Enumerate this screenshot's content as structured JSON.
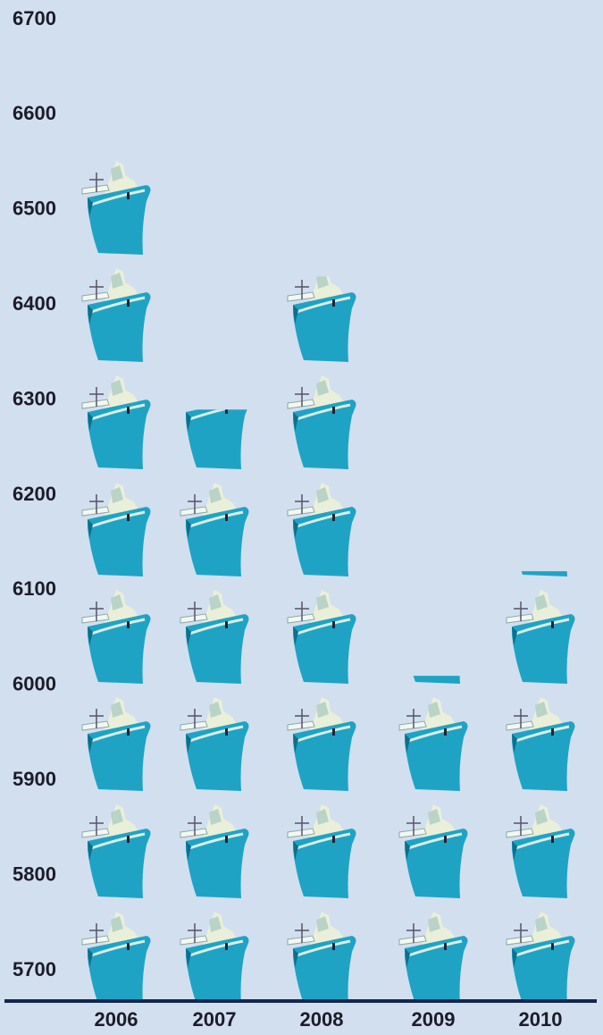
{
  "chart_data": {
    "type": "pictograph",
    "categories": [
      "2006",
      "2007",
      "2008",
      "2009",
      "2010"
    ],
    "values": [
      6560,
      6290,
      6430,
      6010,
      6120
    ],
    "color": "#1fa3c4",
    "ylim": [
      5668,
      6700
    ],
    "yticks": [
      5700,
      5800,
      5900,
      6000,
      6100,
      6200,
      6300,
      6400,
      6500,
      6600,
      6700
    ]
  }
}
